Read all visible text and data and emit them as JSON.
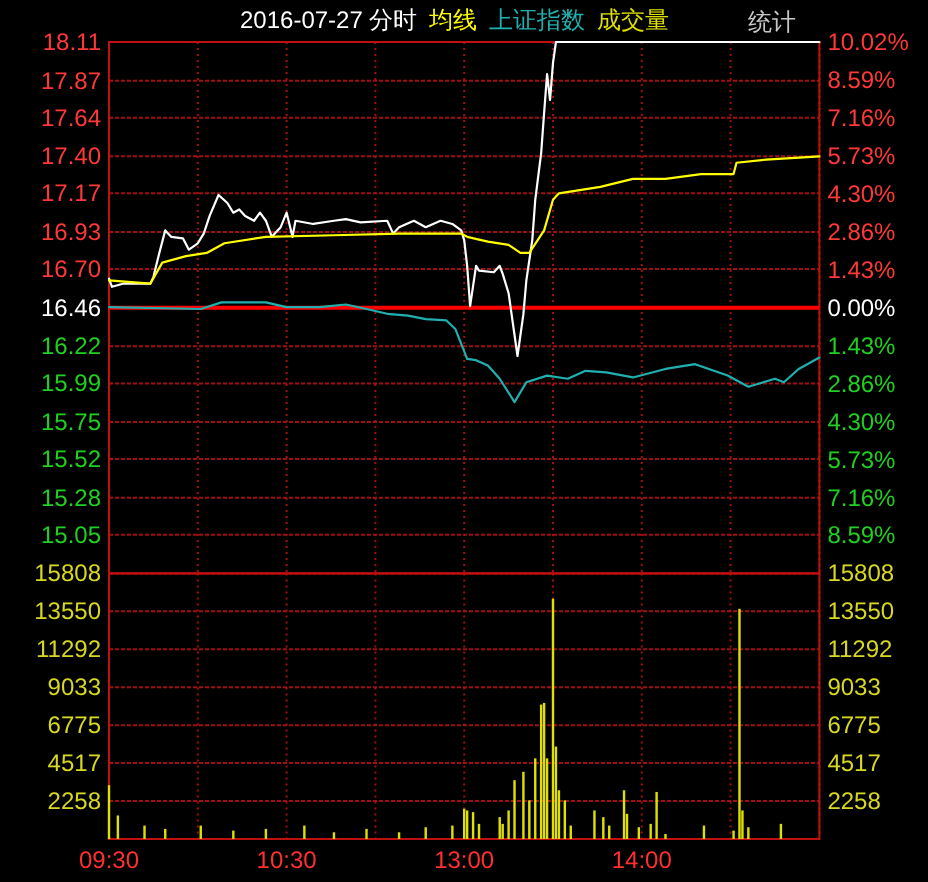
{
  "chart_data": [
    {
      "type": "line",
      "title": "2016-07-27 分时",
      "legend": "top",
      "grid": true,
      "annotations": [
        "统计"
      ],
      "categories": [
        null,
        null,
        null,
        null,
        null,
        null,
        null,
        null,
        null,
        null,
        null,
        null,
        null,
        null,
        null,
        null,
        null,
        null,
        null,
        null,
        null,
        null,
        null,
        null,
        null,
        null,
        null,
        null,
        null,
        null,
        null,
        null,
        null,
        null,
        null,
        null,
        null,
        null,
        null,
        null,
        null,
        null,
        null,
        null,
        null,
        null,
        null,
        null,
        null,
        null,
        null,
        null,
        null,
        null,
        null,
        null,
        null,
        null,
        null,
        null,
        null,
        null,
        null,
        null,
        null,
        null,
        null,
        null,
        null,
        null,
        null,
        null,
        null,
        null,
        null,
        null,
        null,
        null,
        null,
        null,
        null,
        null,
        null,
        null,
        null,
        null,
        null,
        null,
        null,
        null,
        null,
        null,
        null,
        null,
        null,
        null,
        null,
        null,
        null,
        null,
        null,
        null,
        null,
        null,
        null,
        null,
        null,
        null,
        null,
        null,
        null,
        null,
        null,
        null,
        null,
        null,
        null,
        null,
        null,
        null,
        null,
        null,
        null,
        null,
        null,
        null,
        null,
        null,
        null,
        null,
        null,
        null,
        null,
        null,
        null,
        null,
        null,
        null,
        null,
        null,
        null,
        null,
        null,
        null,
        null,
        null,
        null,
        null,
        null,
        null,
        null,
        null,
        null,
        null,
        null,
        null,
        null,
        null,
        null,
        null,
        null,
        null,
        null,
        null,
        null,
        null,
        null,
        null,
        null,
        null,
        null,
        null,
        null,
        null,
        null,
        null,
        null,
        null,
        null,
        null,
        null,
        null,
        null,
        null,
        null,
        null,
        null,
        null,
        null,
        null,
        null,
        null,
        null,
        null,
        null,
        null,
        null,
        null,
        null,
        null,
        null,
        null,
        null,
        null,
        null,
        null,
        null,
        null,
        null,
        null,
        null,
        null,
        null,
        null,
        null,
        null,
        null,
        null,
        null,
        null,
        null,
        null,
        null,
        null,
        null,
        null,
        null,
        null,
        null,
        null,
        null,
        null,
        null,
        null,
        null,
        null,
        null,
        null,
        null,
        null,
        null
      ],
      "ylim": [
        14.81,
        18.11
      ],
      "yticks": [
        15.05,
        15.28,
        15.52,
        15.75,
        15.99,
        16.22,
        16.46,
        {
          "value": 16.7,
          "label": "16.70"
        },
        16.93,
        17.17,
        {
          "value": 17.4,
          "label": "17.40"
        },
        17.64,
        17.87,
        18.11
      ],
      "y2lim": [
        -10.02,
        10.02
      ],
      "y2ticks": [
        {
          "value": -8.59,
          "label": "8.59%"
        },
        {
          "value": -7.16,
          "label": "7.16%"
        },
        {
          "value": -5.73,
          "label": "5.73%"
        },
        {
          "value": -4.3,
          "label": "4.30%"
        },
        {
          "value": -2.86,
          "label": "2.86%"
        },
        {
          "value": -1.43,
          "label": "1.43%"
        },
        {
          "value": 0,
          "label": "0.00%"
        },
        {
          "value": 1.43,
          "label": "1.43%"
        },
        {
          "value": 2.86,
          "label": "2.86%"
        },
        {
          "value": 4.3,
          "label": "4.30%"
        },
        {
          "value": 5.73,
          "label": "5.73%"
        },
        {
          "value": 7.16,
          "label": "7.16%"
        },
        {
          "value": 8.59,
          "label": "8.59%"
        },
        {
          "value": 10.02,
          "label": "10.02%"
        }
      ],
      "ref_lines": [
        {
          "axis": "y",
          "value": 16.46,
          "color": "#ff0000"
        }
      ],
      "series": [
        {
          "color": "#ffffff",
          "values": [
            16.64,
            16.59,
            null,
            null,
            null,
            16.61,
            null,
            null,
            null,
            null,
            16.61,
            null,
            null,
            null,
            16.61,
            16.65,
            null,
            16.8,
            null,
            16.94,
            null,
            16.9,
            null,
            null,
            null,
            16.89,
            null,
            16.82,
            null,
            null,
            16.86,
            null,
            16.92,
            null,
            17.03,
            null,
            null,
            17.16,
            null,
            null,
            17.11,
            null,
            17.05,
            null,
            17.07,
            null,
            17.03,
            null,
            null,
            17.0,
            null,
            17.05,
            null,
            17.0,
            null,
            16.9,
            null,
            null,
            16.96,
            null,
            17.05,
            null,
            16.9,
            17.0,
            null,
            null,
            null,
            null,
            null,
            16.98,
            null,
            null,
            null,
            null,
            null,
            null,
            17.0,
            null,
            null,
            null,
            17.01,
            null,
            null,
            null,
            null,
            16.99,
            null,
            null,
            null,
            null,
            null,
            null,
            null,
            null,
            17.0,
            null,
            16.92,
            null,
            16.96,
            null,
            null,
            null,
            null,
            17.0,
            null,
            null,
            null,
            16.96,
            null,
            null,
            null,
            null,
            17.0,
            null,
            null,
            null,
            16.98,
            null,
            null,
            16.94,
            16.88,
            16.72,
            16.47,
            null,
            16.72,
            16.69,
            null,
            null,
            null,
            null,
            16.68,
            null,
            16.72,
            16.67,
            null,
            16.55,
            null,
            null,
            16.16,
            null,
            16.42,
            16.63,
            null,
            16.88,
            17.13,
            null,
            17.42,
            17.67,
            17.91,
            17.75,
            17.98,
            18.11,
            18.11,
            18.11,
            18.11,
            18.11,
            18.11,
            18.11,
            18.11,
            18.11,
            18.11,
            18.11,
            18.11,
            18.11,
            18.11,
            18.11,
            18.11,
            18.11,
            18.11,
            18.11,
            18.11,
            18.11,
            18.11,
            18.11,
            18.11,
            18.11,
            18.11,
            18.11,
            18.11,
            18.11,
            18.11,
            18.11,
            18.11,
            18.11,
            18.11,
            18.11,
            18.11,
            18.11,
            18.11,
            18.11,
            18.11,
            18.11,
            18.11,
            18.11,
            18.11,
            18.11,
            18.11,
            18.11,
            18.11,
            18.11,
            18.11,
            18.11,
            18.11,
            18.11,
            18.11,
            18.11,
            18.11,
            18.11,
            18.11,
            18.11,
            18.11,
            18.11,
            18.11,
            18.11,
            18.11,
            18.11,
            18.11,
            18.11,
            18.11,
            18.11,
            18.11,
            18.11,
            18.11,
            18.11,
            18.11,
            18.11,
            18.11,
            18.11,
            18.11,
            18.11,
            18.11,
            18.11,
            18.11,
            18.11,
            18.11,
            18.11,
            18.11,
            18.11,
            18.11,
            18.11,
            18.11
          ]
        },
        {
          "name": "均线",
          "color": "#ffff00",
          "values": [
            16.63,
            null,
            null,
            null,
            null,
            null,
            null,
            null,
            null,
            null,
            null,
            null,
            null,
            null,
            16.61,
            null,
            null,
            null,
            16.74,
            null,
            null,
            null,
            null,
            null,
            null,
            null,
            16.78,
            null,
            null,
            null,
            null,
            null,
            null,
            16.8,
            null,
            null,
            null,
            null,
            null,
            16.86,
            null,
            null,
            null,
            null,
            null,
            null,
            null,
            null,
            null,
            null,
            null,
            null,
            null,
            16.9,
            null,
            null,
            null,
            null,
            null,
            null,
            null,
            null,
            null,
            null,
            null,
            null,
            null,
            null,
            null,
            null,
            null,
            null,
            null,
            null,
            null,
            null,
            16.91,
            null,
            null,
            null,
            null,
            null,
            null,
            null,
            null,
            null,
            null,
            null,
            null,
            null,
            null,
            null,
            null,
            null,
            null,
            null,
            null,
            null,
            16.92,
            null,
            null,
            null,
            null,
            null,
            null,
            null,
            null,
            null,
            null,
            null,
            null,
            null,
            null,
            null,
            null,
            null,
            null,
            null,
            null,
            16.92,
            null,
            16.9,
            null,
            null,
            null,
            null,
            null,
            null,
            16.87,
            null,
            null,
            null,
            null,
            null,
            null,
            16.85,
            null,
            null,
            null,
            16.8,
            null,
            null,
            16.8,
            null,
            null,
            null,
            null,
            16.94,
            null,
            null,
            17.13,
            null,
            17.17,
            null,
            null,
            null,
            null,
            null,
            null,
            null,
            null,
            null,
            null,
            null,
            null,
            null,
            17.21,
            null,
            null,
            null,
            null,
            null,
            null,
            null,
            null,
            null,
            null,
            17.26,
            null,
            null,
            null,
            null,
            null,
            null,
            null,
            null,
            null,
            null,
            17.26,
            null,
            null,
            null,
            null,
            null,
            null,
            null,
            null,
            null,
            null,
            null,
            17.29,
            null,
            null,
            null,
            null,
            null,
            null,
            null,
            null,
            null,
            null,
            17.29,
            17.36,
            null,
            null,
            null,
            null,
            null,
            null,
            null,
            null,
            null,
            17.38,
            null,
            null,
            null,
            null,
            null,
            null,
            null,
            null,
            null,
            null,
            null,
            null,
            null,
            null,
            null,
            null,
            null,
            17.4
          ]
        },
        {
          "name": "上证指数",
          "color": "#20b0b0",
          "axis": "y2",
          "values": [
            0.02,
            null,
            null,
            null,
            null,
            null,
            null,
            null,
            null,
            null,
            null,
            null,
            null,
            null,
            null,
            null,
            null,
            null,
            null,
            null,
            null,
            null,
            null,
            null,
            null,
            null,
            null,
            null,
            null,
            null,
            null,
            -0.05,
            null,
            null,
            null,
            null,
            null,
            null,
            0.2,
            null,
            null,
            null,
            null,
            null,
            null,
            null,
            null,
            null,
            null,
            null,
            null,
            null,
            null,
            0.2,
            null,
            null,
            null,
            null,
            null,
            null,
            0.02,
            null,
            null,
            null,
            null,
            null,
            null,
            null,
            null,
            null,
            null,
            0.02,
            null,
            null,
            null,
            null,
            null,
            null,
            null,
            null,
            0.12,
            null,
            null,
            null,
            null,
            null,
            null,
            -0.05,
            null,
            null,
            null,
            null,
            null,
            null,
            -0.23,
            null,
            null,
            null,
            null,
            null,
            null,
            -0.3,
            null,
            null,
            null,
            null,
            null,
            -0.43,
            null,
            null,
            null,
            null,
            null,
            null,
            -0.48,
            null,
            null,
            -0.8,
            null,
            null,
            null,
            -1.93,
            null,
            null,
            -1.98,
            null,
            null,
            null,
            -2.18,
            null,
            null,
            null,
            -2.68,
            null,
            null,
            null,
            null,
            -3.56,
            null,
            null,
            null,
            -2.81,
            null,
            null,
            null,
            null,
            null,
            null,
            -2.56,
            null,
            null,
            null,
            null,
            null,
            null,
            -2.68,
            null,
            null,
            null,
            null,
            null,
            -2.38,
            null,
            null,
            null,
            null,
            null,
            null,
            -2.44,
            null,
            null,
            null,
            null,
            null,
            null,
            null,
            null,
            -2.63,
            null,
            null,
            null,
            null,
            null,
            null,
            null,
            null,
            null,
            null,
            -2.31,
            null,
            null,
            null,
            null,
            null,
            null,
            null,
            null,
            null,
            -2.13,
            null,
            null,
            null,
            null,
            null,
            null,
            null,
            null,
            null,
            null,
            -2.56,
            null,
            null,
            null,
            null,
            null,
            null,
            -2.98,
            null,
            null,
            null,
            null,
            null,
            null,
            null,
            null,
            -2.68,
            null,
            null,
            -2.81,
            null,
            null,
            null,
            null,
            -2.31,
            null,
            null,
            null,
            null,
            null,
            null,
            -1.88
          ]
        }
      ]
    },
    {
      "type": "bar",
      "legend": "top",
      "grid": true,
      "categories": [
        "09:30",
        null,
        null,
        null,
        null,
        null,
        null,
        null,
        null,
        null,
        null,
        null,
        null,
        null,
        null,
        null,
        null,
        null,
        null,
        null,
        null,
        null,
        null,
        null,
        null,
        null,
        null,
        null,
        null,
        null,
        null,
        null,
        null,
        null,
        null,
        null,
        null,
        null,
        null,
        null,
        null,
        null,
        null,
        null,
        null,
        null,
        null,
        null,
        null,
        null,
        null,
        null,
        null,
        null,
        null,
        null,
        null,
        null,
        null,
        null,
        "10:30",
        null,
        null,
        null,
        null,
        null,
        null,
        null,
        null,
        null,
        null,
        null,
        null,
        null,
        null,
        null,
        null,
        null,
        null,
        null,
        null,
        null,
        null,
        null,
        null,
        null,
        null,
        null,
        null,
        null,
        null,
        null,
        null,
        null,
        null,
        null,
        null,
        null,
        null,
        null,
        null,
        null,
        null,
        null,
        null,
        null,
        null,
        null,
        null,
        null,
        null,
        null,
        null,
        null,
        null,
        null,
        null,
        null,
        null,
        null,
        "13:00",
        null,
        null,
        null,
        null,
        null,
        null,
        null,
        null,
        null,
        null,
        null,
        null,
        null,
        null,
        null,
        null,
        null,
        null,
        null,
        null,
        null,
        null,
        null,
        null,
        null,
        null,
        null,
        null,
        null,
        null,
        null,
        null,
        null,
        null,
        null,
        null,
        null,
        null,
        null,
        null,
        null,
        null,
        null,
        null,
        null,
        null,
        null,
        null,
        null,
        null,
        null,
        null,
        null,
        null,
        null,
        null,
        null,
        null,
        null,
        "14:00",
        null,
        null,
        null,
        null,
        null,
        null,
        null,
        null,
        null,
        null,
        null,
        null,
        null,
        null,
        null,
        null,
        null,
        null,
        null,
        null,
        null,
        null,
        null,
        null,
        null,
        null,
        null,
        null,
        null,
        null,
        null,
        null,
        null,
        null,
        null,
        null,
        null,
        null,
        null,
        null,
        null,
        null,
        null,
        null,
        null,
        null,
        null,
        null,
        null,
        null,
        null,
        null,
        null,
        null,
        null,
        null,
        null,
        null,
        null,
        null
      ],
      "ylim": [
        0,
        15808
      ],
      "yticks": [
        2258,
        4517,
        6775,
        9033,
        11292,
        13550,
        15808
      ],
      "y2lim": [
        0,
        15808
      ],
      "y2ticks": [
        2258,
        4517,
        6775,
        9033,
        11292,
        13550,
        15808
      ],
      "series": [
        {
          "name": "成交量",
          "color": "#e0e000",
          "values": [
            3200,
            null,
            null,
            1400,
            null,
            null,
            null,
            null,
            null,
            null,
            null,
            null,
            800,
            null,
            null,
            null,
            null,
            null,
            null,
            600,
            null,
            null,
            null,
            null,
            null,
            null,
            null,
            null,
            null,
            null,
            null,
            800,
            null,
            null,
            null,
            null,
            null,
            null,
            null,
            null,
            null,
            null,
            500,
            null,
            null,
            null,
            null,
            null,
            null,
            null,
            null,
            null,
            null,
            600,
            null,
            null,
            null,
            null,
            null,
            null,
            null,
            null,
            null,
            null,
            null,
            null,
            800,
            null,
            null,
            null,
            null,
            null,
            null,
            null,
            null,
            null,
            400,
            null,
            null,
            null,
            null,
            null,
            null,
            null,
            null,
            null,
            null,
            600,
            null,
            null,
            null,
            null,
            null,
            null,
            null,
            null,
            null,
            null,
            400,
            null,
            null,
            null,
            null,
            null,
            null,
            null,
            null,
            700,
            null,
            null,
            null,
            null,
            null,
            null,
            null,
            null,
            800,
            null,
            null,
            null,
            1800,
            1700,
            null,
            1600,
            null,
            900,
            null,
            null,
            null,
            null,
            null,
            null,
            1300,
            900,
            null,
            1700,
            null,
            3500,
            null,
            null,
            4000,
            null,
            2300,
            null,
            4800,
            null,
            8000,
            8100,
            4800,
            null,
            14300,
            5500,
            2900,
            null,
            2300,
            null,
            800,
            null,
            null,
            null,
            null,
            null,
            null,
            null,
            1700,
            null,
            null,
            1300,
            null,
            800,
            null,
            null,
            null,
            null,
            2900,
            1500,
            null,
            null,
            null,
            700,
            null,
            null,
            null,
            900,
            null,
            2800,
            null,
            null,
            300,
            null,
            null,
            null,
            null,
            null,
            null,
            null,
            null,
            null,
            null,
            null,
            null,
            800,
            null,
            null,
            null,
            null,
            null,
            null,
            null,
            null,
            null,
            500,
            null,
            13700,
            1700,
            null,
            700,
            null,
            null,
            null,
            null,
            null,
            null,
            null,
            null,
            null,
            null,
            900,
            null,
            null,
            null,
            null,
            null,
            null,
            null,
            null,
            null,
            null,
            null,
            null,
            null
          ]
        }
      ]
    }
  ]
}
